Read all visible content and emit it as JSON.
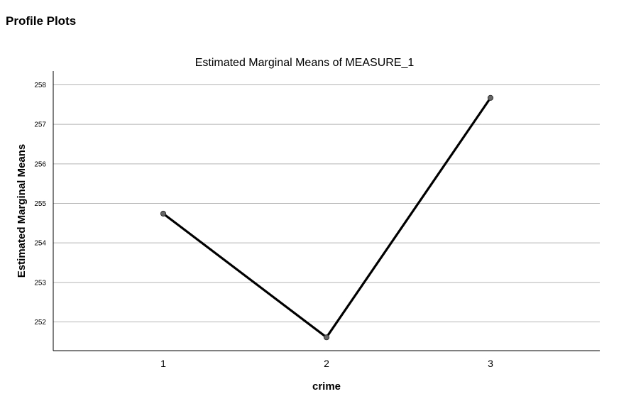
{
  "page": {
    "section_title": "Profile Plots"
  },
  "chart_data": {
    "type": "line",
    "title": "Estimated Marginal Means of MEASURE_1",
    "xlabel": "crime",
    "ylabel": "Estimated Marginal Means",
    "categories": [
      "1",
      "2",
      "3"
    ],
    "series": [
      {
        "values": [
          254.74,
          251.61,
          257.67
        ]
      }
    ],
    "ylim": [
      251.25,
      258.35
    ],
    "yticks": [
      252,
      253,
      254,
      255,
      256,
      257,
      258
    ],
    "grid": "horizontal",
    "legend": "none",
    "colors": {
      "line": "#000000",
      "marker_fill": "#666666",
      "grid": "#b4b4b4",
      "axis": "#000000"
    }
  }
}
